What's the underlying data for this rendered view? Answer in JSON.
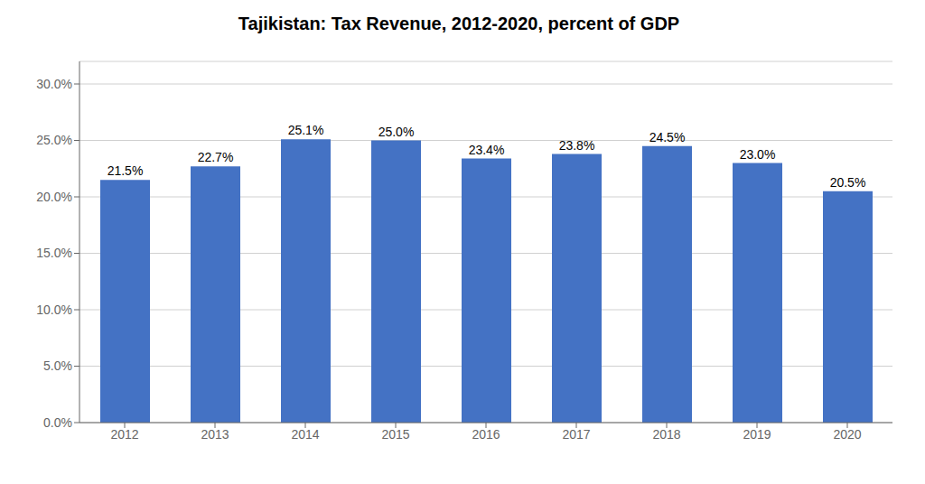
{
  "chart_data": {
    "type": "bar",
    "title": "Tajikistan: Tax Revenue, 2012-2020, percent of GDP",
    "categories": [
      "2012",
      "2013",
      "2014",
      "2015",
      "2016",
      "2017",
      "2018",
      "2019",
      "2020"
    ],
    "values": [
      21.5,
      22.7,
      25.1,
      25.0,
      23.4,
      23.8,
      24.5,
      23.0,
      20.5
    ],
    "value_labels": [
      "21.5%",
      "22.7%",
      "25.1%",
      "25.0%",
      "23.4%",
      "23.8%",
      "24.5%",
      "23.0%",
      "20.5%"
    ],
    "data_labels": true,
    "color": "#4472C4",
    "ylim": [
      0,
      32
    ],
    "yticks": [
      {
        "value": 0,
        "label": "0.0%"
      },
      {
        "value": 5,
        "label": "5.0%"
      },
      {
        "value": 10,
        "label": "10.0%"
      },
      {
        "value": 15,
        "label": "15.0%"
      },
      {
        "value": 20,
        "label": "20.0%"
      },
      {
        "value": 25,
        "label": "25.0%"
      },
      {
        "value": 30,
        "label": "30.0%"
      }
    ],
    "grid": true
  }
}
